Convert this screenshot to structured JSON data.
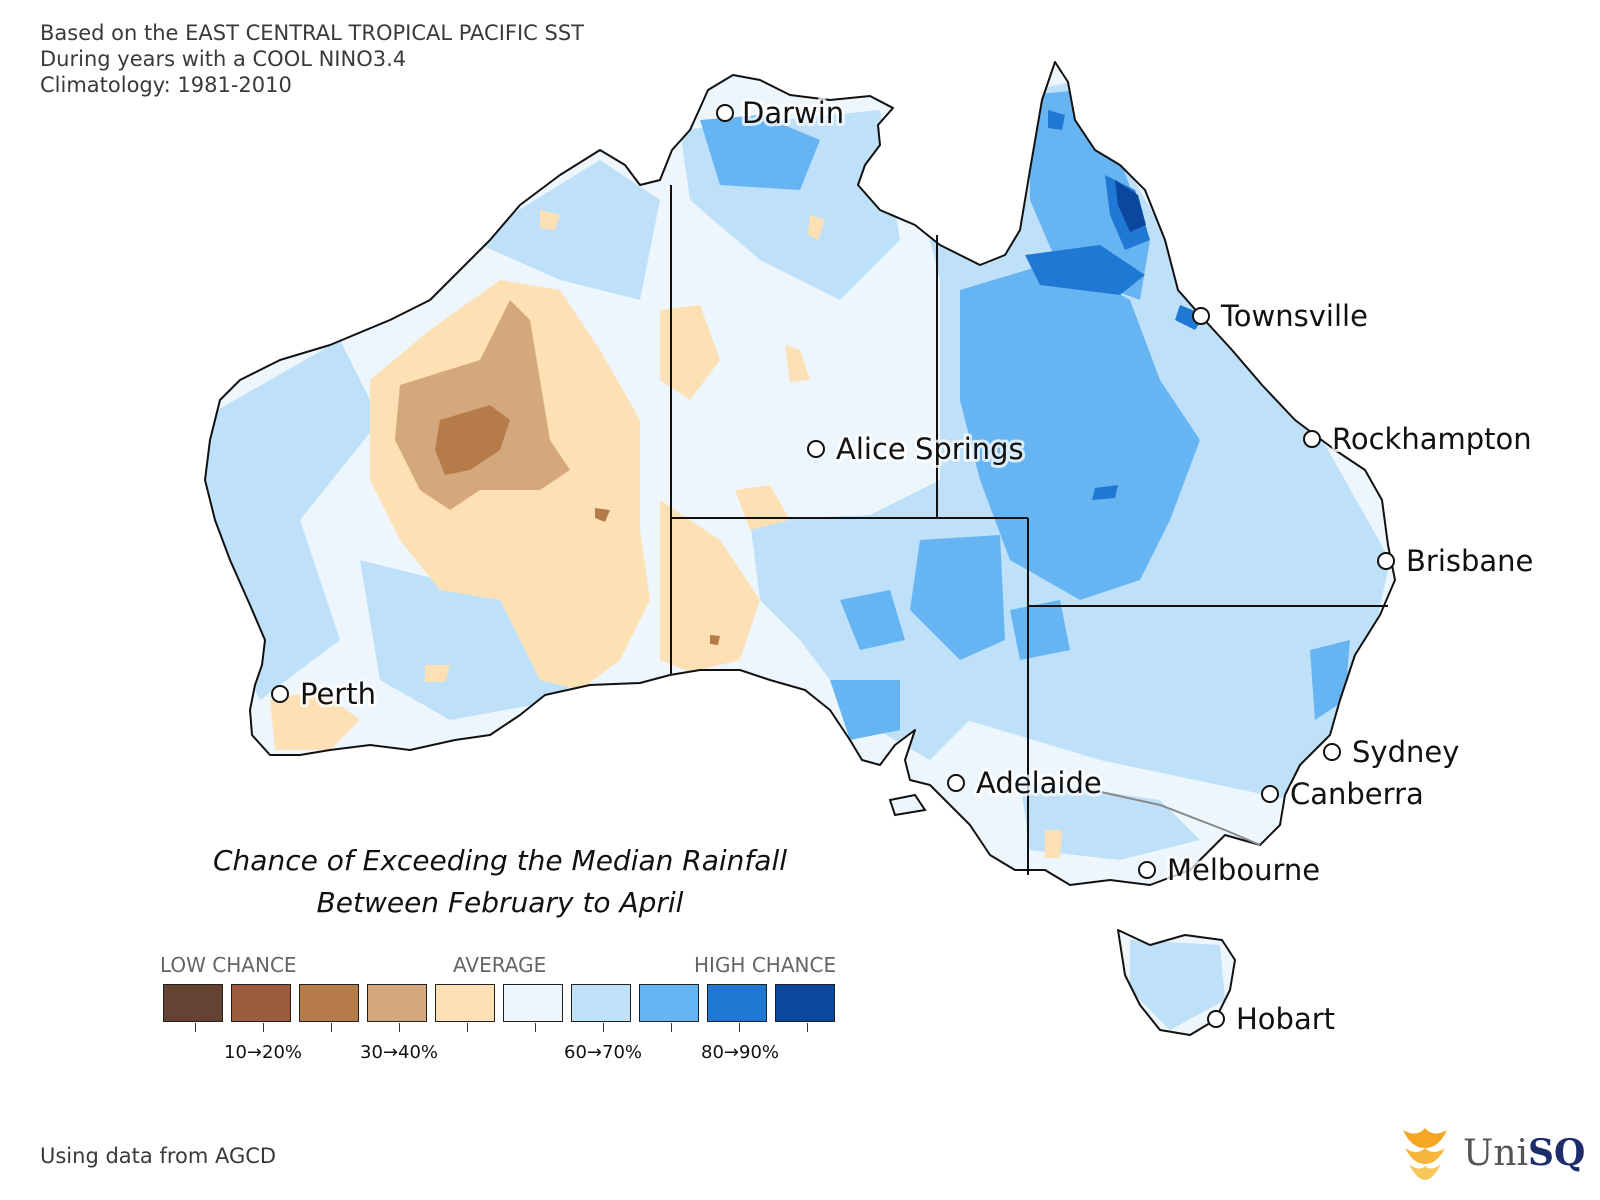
{
  "header": {
    "line1": "Based on the EAST CENTRAL TROPICAL PACIFIC SST",
    "line2": "During years with a COOL NINO3.4",
    "line3": "Climatology: 1981-2010"
  },
  "map_title": {
    "line1": "Chance of Exceeding the Median Rainfall",
    "line2": "Between February to April"
  },
  "cities": [
    {
      "name": "Darwin"
    },
    {
      "name": "Townsville"
    },
    {
      "name": "Rockhampton"
    },
    {
      "name": "Alice Springs"
    },
    {
      "name": "Brisbane"
    },
    {
      "name": "Perth"
    },
    {
      "name": "Sydney"
    },
    {
      "name": "Adelaide"
    },
    {
      "name": "Canberra"
    },
    {
      "name": "Melbourne"
    },
    {
      "name": "Hobart"
    }
  ],
  "legend": {
    "low_label": "LOW CHANCE",
    "avg_label": "AVERAGE",
    "high_label": "HIGH CHANCE",
    "colors": [
      "#654232",
      "#9b5b3c",
      "#b57c4a",
      "#d4a87c",
      "#fde0b4",
      "#eef6fd",
      "#bee0f8",
      "#67b4f2",
      "#1e78d4",
      "#0c479e"
    ],
    "tick_labels": [
      "10→20%",
      "30→40%",
      "60→70%",
      "80→90%"
    ]
  },
  "footer": {
    "source": "Using data from AGCD"
  },
  "logo": {
    "text_plain": "Uni",
    "text_bold": "SQ"
  }
}
